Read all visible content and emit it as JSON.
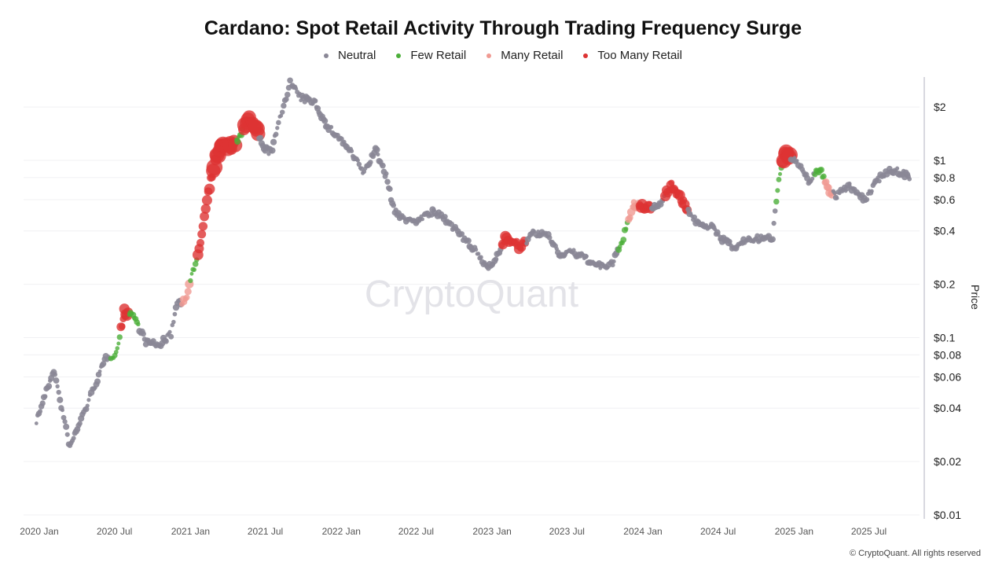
{
  "chart_data": {
    "type": "scatter",
    "title": "Cardano: Spot Retail Activity Through Trading Frequency Surge",
    "ylabel": "Price",
    "yscale": "log",
    "ylim": [
      0.01,
      3
    ],
    "yticks": [
      {
        "v": 2,
        "label": "$2"
      },
      {
        "v": 1,
        "label": "$1"
      },
      {
        "v": 0.8,
        "label": "$0.8"
      },
      {
        "v": 0.6,
        "label": "$0.6"
      },
      {
        "v": 0.4,
        "label": "$0.4"
      },
      {
        "v": 0.2,
        "label": "$0.2"
      },
      {
        "v": 0.1,
        "label": "$0.1"
      },
      {
        "v": 0.08,
        "label": "$0.08"
      },
      {
        "v": 0.06,
        "label": "$0.06"
      },
      {
        "v": 0.04,
        "label": "$0.04"
      },
      {
        "v": 0.02,
        "label": "$0.02"
      },
      {
        "v": 0.01,
        "label": "$0.01"
      }
    ],
    "xticks": [
      {
        "d": "2020-01-01",
        "label": "2020 Jan"
      },
      {
        "d": "2020-07-01",
        "label": "2020 Jul"
      },
      {
        "d": "2021-01-01",
        "label": "2021 Jan"
      },
      {
        "d": "2021-07-01",
        "label": "2021 Jul"
      },
      {
        "d": "2022-01-01",
        "label": "2022 Jan"
      },
      {
        "d": "2022-07-01",
        "label": "2022 Jul"
      },
      {
        "d": "2023-01-01",
        "label": "2023 Jan"
      },
      {
        "d": "2023-07-01",
        "label": "2023 Jul"
      },
      {
        "d": "2024-01-01",
        "label": "2024 Jan"
      },
      {
        "d": "2024-07-01",
        "label": "2024 Jul"
      },
      {
        "d": "2025-01-01",
        "label": "2025 Jan"
      },
      {
        "d": "2025-07-01",
        "label": "2025 Jul"
      }
    ],
    "grid": true,
    "legend_placement": "top",
    "series": [
      {
        "key": "neutral",
        "name": "Neutral",
        "color": "#8a8796"
      },
      {
        "key": "few",
        "name": "Few Retail",
        "color": "#4caf3a"
      },
      {
        "key": "many",
        "name": "Many Retail",
        "color": "#f09a92"
      },
      {
        "key": "too",
        "name": "Too Many Retail",
        "color": "#dd3333"
      }
    ],
    "points": [
      [
        "2019-12-25",
        0.034,
        "neutral"
      ],
      [
        "2020-02-05",
        0.066,
        "neutral"
      ],
      [
        "2020-03-15",
        0.024,
        "neutral"
      ],
      [
        "2020-04-05",
        0.032,
        "neutral"
      ],
      [
        "2020-05-15",
        0.054,
        "neutral"
      ],
      [
        "2020-06-10",
        0.077,
        "neutral"
      ],
      [
        "2020-07-05",
        0.081,
        "few"
      ],
      [
        "2020-07-25",
        0.14,
        "too"
      ],
      [
        "2020-08-15",
        0.135,
        "few"
      ],
      [
        "2020-09-15",
        0.095,
        "neutral"
      ],
      [
        "2020-10-15",
        0.09,
        "neutral"
      ],
      [
        "2020-11-15",
        0.105,
        "neutral"
      ],
      [
        "2020-11-30",
        0.16,
        "neutral"
      ],
      [
        "2020-12-20",
        0.16,
        "many"
      ],
      [
        "2021-01-10",
        0.25,
        "few"
      ],
      [
        "2021-01-25",
        0.34,
        "too"
      ],
      [
        "2021-02-10",
        0.62,
        "too"
      ],
      [
        "2021-02-25",
        0.89,
        "too"
      ],
      [
        "2021-03-15",
        1.21,
        "too"
      ],
      [
        "2021-04-10",
        1.2,
        "too"
      ],
      [
        "2021-05-01",
        1.34,
        "few"
      ],
      [
        "2021-05-20",
        1.73,
        "too"
      ],
      [
        "2021-06-05",
        1.57,
        "too"
      ],
      [
        "2021-06-25",
        1.2,
        "neutral"
      ],
      [
        "2021-07-15",
        1.1,
        "neutral"
      ],
      [
        "2021-08-05",
        1.7,
        "neutral"
      ],
      [
        "2021-08-30",
        2.75,
        "neutral"
      ],
      [
        "2021-09-25",
        2.24,
        "neutral"
      ],
      [
        "2021-10-30",
        2.13,
        "neutral"
      ],
      [
        "2021-11-25",
        1.57,
        "neutral"
      ],
      [
        "2021-12-20",
        1.4,
        "neutral"
      ],
      [
        "2022-01-20",
        1.15,
        "neutral"
      ],
      [
        "2022-02-25",
        0.85,
        "neutral"
      ],
      [
        "2022-03-25",
        1.15,
        "neutral"
      ],
      [
        "2022-04-20",
        0.81,
        "neutral"
      ],
      [
        "2022-05-10",
        0.51,
        "neutral"
      ],
      [
        "2022-06-10",
        0.46,
        "neutral"
      ],
      [
        "2022-07-01",
        0.46,
        "neutral"
      ],
      [
        "2022-08-10",
        0.51,
        "neutral"
      ],
      [
        "2022-09-15",
        0.46,
        "neutral"
      ],
      [
        "2022-10-20",
        0.37,
        "neutral"
      ],
      [
        "2022-11-20",
        0.31,
        "neutral"
      ],
      [
        "2022-12-20",
        0.25,
        "neutral"
      ],
      [
        "2023-01-10",
        0.28,
        "neutral"
      ],
      [
        "2023-02-05",
        0.37,
        "too"
      ],
      [
        "2023-03-10",
        0.32,
        "too"
      ],
      [
        "2023-04-10",
        0.39,
        "neutral"
      ],
      [
        "2023-05-20",
        0.37,
        "neutral"
      ],
      [
        "2023-06-15",
        0.29,
        "neutral"
      ],
      [
        "2023-07-05",
        0.31,
        "neutral"
      ],
      [
        "2023-08-15",
        0.28,
        "neutral"
      ],
      [
        "2023-09-20",
        0.25,
        "neutral"
      ],
      [
        "2023-10-20",
        0.26,
        "neutral"
      ],
      [
        "2023-11-15",
        0.37,
        "few"
      ],
      [
        "2023-12-10",
        0.56,
        "many"
      ],
      [
        "2024-01-05",
        0.54,
        "too"
      ],
      [
        "2024-02-10",
        0.56,
        "neutral"
      ],
      [
        "2024-03-10",
        0.73,
        "too"
      ],
      [
        "2024-04-05",
        0.59,
        "too"
      ],
      [
        "2024-05-05",
        0.46,
        "neutral"
      ],
      [
        "2024-06-15",
        0.42,
        "neutral"
      ],
      [
        "2024-07-05",
        0.37,
        "neutral"
      ],
      [
        "2024-08-10",
        0.32,
        "neutral"
      ],
      [
        "2024-09-10",
        0.36,
        "neutral"
      ],
      [
        "2024-10-25",
        0.36,
        "neutral"
      ],
      [
        "2024-11-10",
        0.37,
        "neutral"
      ],
      [
        "2024-11-25",
        0.81,
        "few"
      ],
      [
        "2024-12-10",
        1.1,
        "too"
      ],
      [
        "2025-01-05",
        0.99,
        "neutral"
      ],
      [
        "2025-02-05",
        0.77,
        "neutral"
      ],
      [
        "2025-03-05",
        0.89,
        "few"
      ],
      [
        "2025-03-25",
        0.69,
        "many"
      ],
      [
        "2025-04-15",
        0.63,
        "neutral"
      ],
      [
        "2025-05-15",
        0.73,
        "neutral"
      ],
      [
        "2025-06-20",
        0.59,
        "neutral"
      ],
      [
        "2025-07-20",
        0.77,
        "neutral"
      ],
      [
        "2025-08-20",
        0.89,
        "neutral"
      ],
      [
        "2025-09-20",
        0.85,
        "neutral"
      ],
      [
        "2025-10-10",
        0.81,
        "neutral"
      ]
    ]
  },
  "watermark": "CryptoQuant",
  "copyright": "© CryptoQuant. All rights reserved"
}
